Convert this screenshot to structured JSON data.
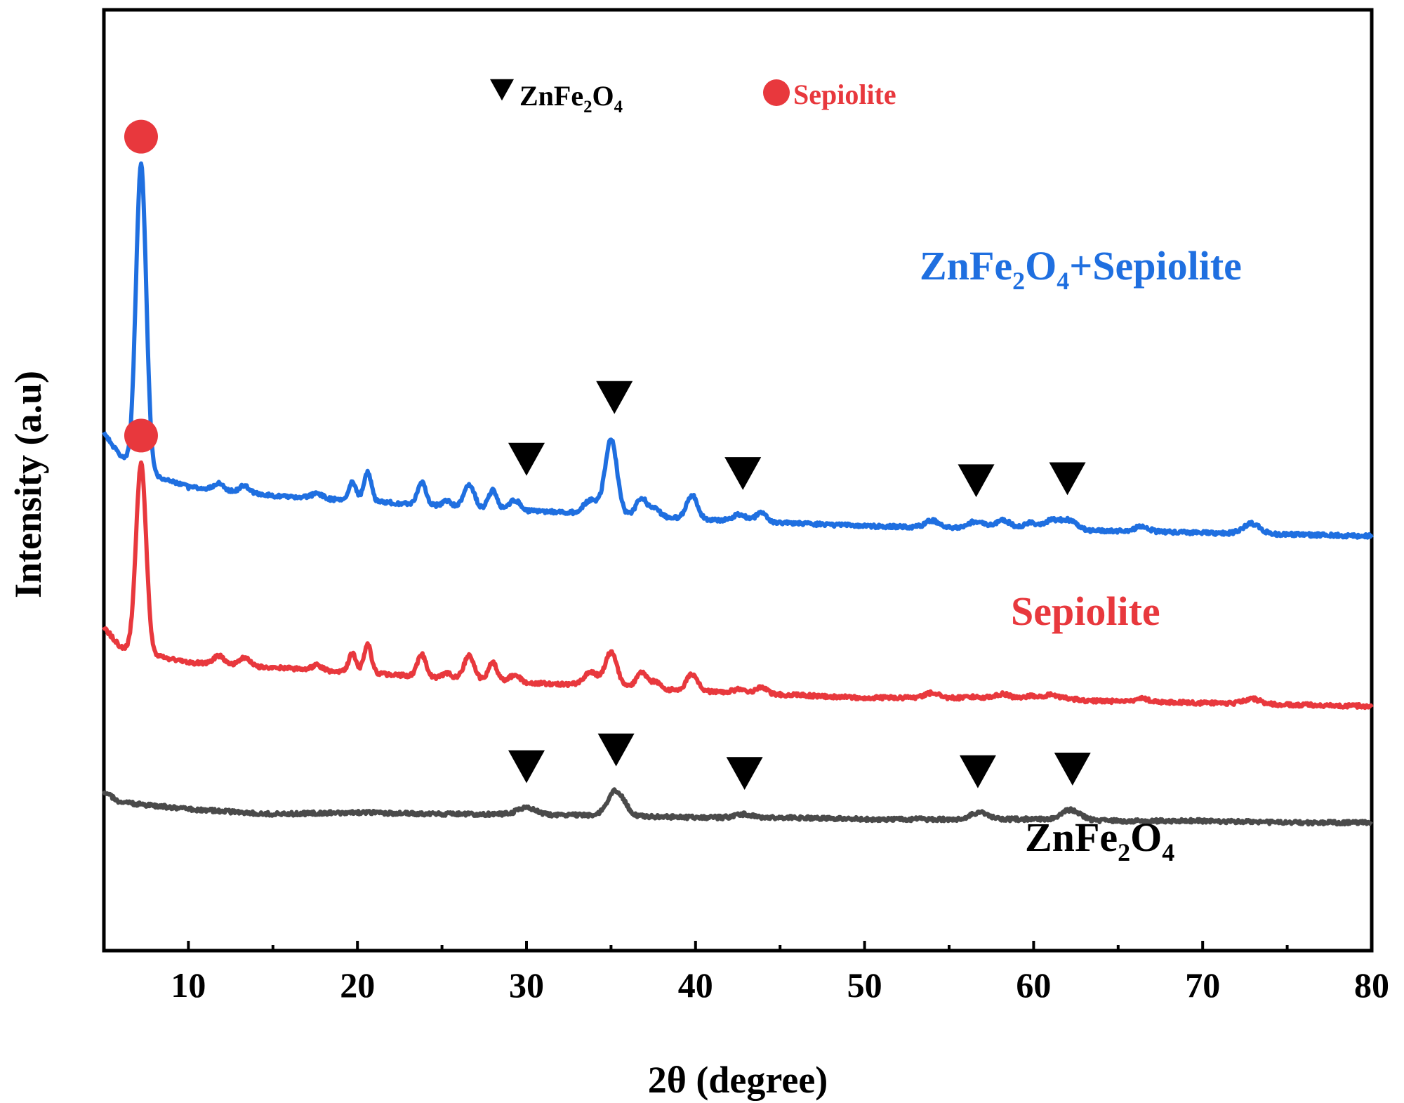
{
  "chart_data": {
    "type": "line",
    "title": "",
    "xlabel": "2θ (degree)",
    "ylabel": "Intensity (a.u)",
    "xlim": [
      5,
      80
    ],
    "x_ticks": [
      10,
      20,
      30,
      40,
      50,
      60,
      70,
      80
    ],
    "x_minor_ticks": [
      15,
      25,
      35,
      45,
      55,
      65,
      75
    ],
    "y_ticks_shown": false,
    "grid": false,
    "legend": [
      {
        "marker": "down-triangle",
        "text": "ZnFe",
        "sub1": "2",
        "text2": "O",
        "sub2": "4",
        "color": "#000000"
      },
      {
        "marker": "circle",
        "text": "Sepiolite",
        "color": "#e8383d"
      }
    ],
    "series": [
      {
        "name": "ZnFe2O4+Sepiolite",
        "label_parts": [
          "ZnFe",
          "2",
          "O",
          "4",
          "+Sepiolite"
        ],
        "color": "#1f6fe0",
        "offset": 220,
        "baseline": 12,
        "baseline_x": [
          5,
          6,
          8,
          10,
          15,
          20,
          25,
          30,
          35,
          40,
          45,
          50,
          55,
          60,
          65,
          70,
          75,
          80
        ],
        "baseline_y": [
          62,
          48,
          37,
          30,
          25,
          22,
          19,
          16,
          14,
          11,
          9,
          7,
          6,
          5,
          4,
          3,
          2,
          1
        ],
        "peaks": [
          [
            7.2,
            180,
            0.3
          ],
          [
            11.8,
            4,
            0.3
          ],
          [
            13.3,
            4,
            0.3
          ],
          [
            17.6,
            3,
            0.3
          ],
          [
            19.7,
            11,
            0.22
          ],
          [
            20.6,
            17,
            0.22
          ],
          [
            23.8,
            13,
            0.25
          ],
          [
            25.3,
            3,
            0.25
          ],
          [
            26.6,
            14,
            0.3
          ],
          [
            28.0,
            11,
            0.25
          ],
          [
            29.3,
            6,
            0.3
          ],
          [
            33.8,
            8,
            0.4
          ],
          [
            35.0,
            45,
            0.35
          ],
          [
            36.8,
            11,
            0.3
          ],
          [
            37.6,
            5,
            0.3
          ],
          [
            39.8,
            14,
            0.32
          ],
          [
            42.6,
            4,
            0.4
          ],
          [
            43.9,
            6,
            0.3
          ],
          [
            54.0,
            4,
            0.4
          ],
          [
            56.6,
            4,
            0.5
          ],
          [
            58.2,
            5,
            0.45
          ],
          [
            59.8,
            4,
            0.4
          ],
          [
            61.0,
            5,
            0.4
          ],
          [
            62.0,
            6,
            0.5
          ],
          [
            66.4,
            3,
            0.4
          ],
          [
            72.9,
            6,
            0.5
          ]
        ]
      },
      {
        "name": "Sepiolite",
        "label_parts": [
          "Sepiolite"
        ],
        "color": "#e8383d",
        "offset": 120,
        "baseline": 6,
        "baseline_x": [
          5,
          6,
          8,
          10,
          15,
          20,
          25,
          30,
          35,
          40,
          45,
          50,
          55,
          60,
          65,
          70,
          75,
          80
        ],
        "baseline_y": [
          47,
          35,
          30,
          26,
          23,
          20,
          17,
          14,
          12,
          9,
          7,
          5,
          5,
          4,
          3,
          2,
          1,
          0
        ],
        "peaks": [
          [
            7.2,
            112,
            0.3
          ],
          [
            11.8,
            5,
            0.3
          ],
          [
            13.3,
            5,
            0.3
          ],
          [
            17.6,
            3,
            0.3
          ],
          [
            19.7,
            11,
            0.22
          ],
          [
            20.6,
            17,
            0.22
          ],
          [
            23.8,
            13,
            0.25
          ],
          [
            25.3,
            3,
            0.25
          ],
          [
            26.6,
            14,
            0.3
          ],
          [
            28.0,
            11,
            0.25
          ],
          [
            29.3,
            4,
            0.3
          ],
          [
            33.8,
            8,
            0.4
          ],
          [
            35.0,
            20,
            0.35
          ],
          [
            36.8,
            9,
            0.3
          ],
          [
            37.6,
            4,
            0.3
          ],
          [
            39.8,
            10,
            0.32
          ],
          [
            42.6,
            2,
            0.4
          ],
          [
            43.9,
            4,
            0.3
          ],
          [
            54.0,
            3,
            0.4
          ],
          [
            56.6,
            1,
            0.5
          ],
          [
            58.2,
            3,
            0.45
          ],
          [
            59.8,
            2,
            0.4
          ],
          [
            61.0,
            3,
            0.4
          ],
          [
            62.0,
            1,
            0.5
          ],
          [
            66.4,
            2,
            0.4
          ],
          [
            72.9,
            3,
            0.5
          ]
        ]
      },
      {
        "name": "ZnFe2O4",
        "label_parts": [
          "ZnFe",
          "2",
          "O",
          "4"
        ],
        "color": "#4a4a4a",
        "offset": 50,
        "baseline": 5,
        "baseline_x": [
          5,
          6,
          8,
          10,
          15,
          20,
          25,
          30,
          35,
          40,
          45,
          50,
          55,
          60,
          65,
          70,
          75,
          80
        ],
        "baseline_y": [
          19,
          13,
          11,
          9,
          6,
          7,
          6,
          6,
          5,
          4,
          4,
          3,
          3,
          3,
          2,
          2,
          1,
          1
        ],
        "peaks": [
          [
            30.0,
            4,
            0.5
          ],
          [
            35.3,
            15,
            0.5
          ],
          [
            42.9,
            2,
            0.5
          ],
          [
            56.8,
            4,
            0.5
          ],
          [
            62.2,
            6,
            0.55
          ]
        ]
      }
    ],
    "peak_markers": {
      "ZnFe2O4+Sepiolite": {
        "triangles_x": [
          30.0,
          35.2,
          42.8,
          56.6,
          62.0
        ],
        "circles_x": [
          7.2
        ]
      },
      "Sepiolite": {
        "triangles_x": [],
        "circles_x": [
          7.2
        ]
      },
      "ZnFe2O4": {
        "triangles_x": [
          30.0,
          35.3,
          42.9,
          56.7,
          62.3
        ],
        "circles_x": []
      }
    }
  }
}
